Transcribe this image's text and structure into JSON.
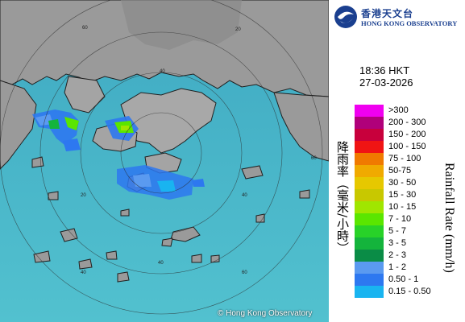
{
  "header": {
    "org_name_cn": "香港天文台",
    "org_name_en": "HONG KONG OBSERVATORY"
  },
  "timestamp": {
    "time": "18:36 HKT",
    "date": "27-03-2026"
  },
  "legend": {
    "title_en": "Rainfall Rate (mm/h)",
    "title_cn": "降雨率（毫米/小時）",
    "items": [
      {
        "label": ">300",
        "color": "#f000f0"
      },
      {
        "label": "200 - 300",
        "color": "#b0007a"
      },
      {
        "label": "150 - 200",
        "color": "#c8003c"
      },
      {
        "label": "100 - 150",
        "color": "#f01414"
      },
      {
        "label": "75 - 100",
        "color": "#f07a00"
      },
      {
        "label": "50-75",
        "color": "#f0aa00"
      },
      {
        "label": "30 - 50",
        "color": "#e6c800"
      },
      {
        "label": "15 - 30",
        "color": "#c8c800"
      },
      {
        "label": "10 - 15",
        "color": "#a0e600"
      },
      {
        "label": "7 - 10",
        "color": "#5ae600"
      },
      {
        "label": "5 - 7",
        "color": "#28d228"
      },
      {
        "label": "3 - 5",
        "color": "#14b43c"
      },
      {
        "label": "2 - 3",
        "color": "#0a8c46"
      },
      {
        "label": "1 - 2",
        "color": "#5a9af0"
      },
      {
        "label": "0.50 - 1",
        "color": "#2d78f0"
      },
      {
        "label": "0.15 - 0.50",
        "color": "#19b4f0"
      }
    ]
  },
  "map": {
    "copyright": "© Hong Kong Observatory",
    "range_labels": [
      "60",
      "40",
      "20",
      "20",
      "40",
      "60",
      "40",
      "60",
      "40"
    ],
    "sea_color": "#48b7c9",
    "land_color": "#9a9a9a"
  }
}
